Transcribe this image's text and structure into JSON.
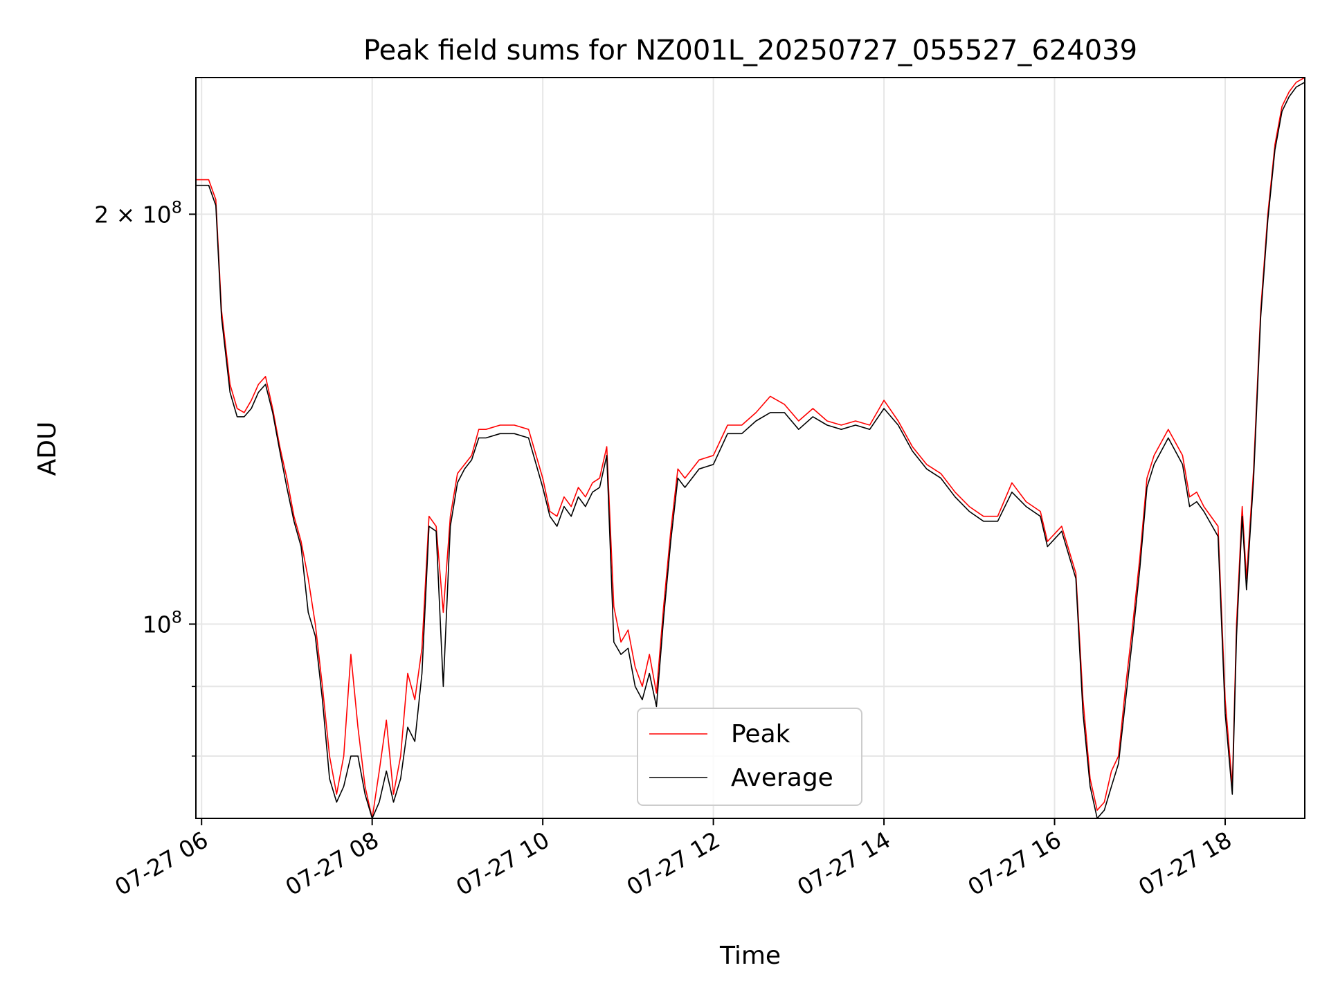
{
  "chart_data": {
    "type": "line",
    "title": "Peak field sums for NZ001L_20250727_055527_624039",
    "xlabel": "Time",
    "ylabel": "ADU",
    "y_scale": "log",
    "xlim": [
      "2025-07-27T05:56",
      "2025-07-27T18:56"
    ],
    "ylim": [
      72000000,
      252000000
    ],
    "x_ticks": [
      {
        "value": "2025-07-27T06:00",
        "label": "07-27 06"
      },
      {
        "value": "2025-07-27T08:00",
        "label": "07-27 08"
      },
      {
        "value": "2025-07-27T10:00",
        "label": "07-27 10"
      },
      {
        "value": "2025-07-27T12:00",
        "label": "07-27 12"
      },
      {
        "value": "2025-07-27T14:00",
        "label": "07-27 14"
      },
      {
        "value": "2025-07-27T16:00",
        "label": "07-27 16"
      },
      {
        "value": "2025-07-27T18:00",
        "label": "07-27 18"
      }
    ],
    "y_major_ticks": [
      {
        "value": 100000000,
        "mantissa": "",
        "base": "10",
        "exp": "8"
      },
      {
        "value": 200000000,
        "mantissa": "2 × ",
        "base": "10",
        "exp": "8"
      }
    ],
    "y_minor_ticks": [
      80000000,
      90000000
    ],
    "grid": true,
    "legend_position": "lower-center",
    "series": [
      {
        "name": "Peak",
        "color": "#ff0000",
        "x": [
          "2025-07-27T05:56",
          "2025-07-27T06:05",
          "2025-07-27T06:10",
          "2025-07-27T06:14",
          "2025-07-27T06:20",
          "2025-07-27T06:25",
          "2025-07-27T06:30",
          "2025-07-27T06:35",
          "2025-07-27T06:40",
          "2025-07-27T06:45",
          "2025-07-27T06:50",
          "2025-07-27T06:55",
          "2025-07-27T07:00",
          "2025-07-27T07:05",
          "2025-07-27T07:10",
          "2025-07-27T07:15",
          "2025-07-27T07:20",
          "2025-07-27T07:25",
          "2025-07-27T07:30",
          "2025-07-27T07:35",
          "2025-07-27T07:40",
          "2025-07-27T07:45",
          "2025-07-27T07:50",
          "2025-07-27T07:55",
          "2025-07-27T08:00",
          "2025-07-27T08:05",
          "2025-07-27T08:10",
          "2025-07-27T08:15",
          "2025-07-27T08:20",
          "2025-07-27T08:25",
          "2025-07-27T08:30",
          "2025-07-27T08:35",
          "2025-07-27T08:40",
          "2025-07-27T08:45",
          "2025-07-27T08:50",
          "2025-07-27T08:55",
          "2025-07-27T09:00",
          "2025-07-27T09:05",
          "2025-07-27T09:10",
          "2025-07-27T09:15",
          "2025-07-27T09:20",
          "2025-07-27T09:30",
          "2025-07-27T09:40",
          "2025-07-27T09:50",
          "2025-07-27T10:00",
          "2025-07-27T10:05",
          "2025-07-27T10:10",
          "2025-07-27T10:15",
          "2025-07-27T10:20",
          "2025-07-27T10:25",
          "2025-07-27T10:30",
          "2025-07-27T10:35",
          "2025-07-27T10:40",
          "2025-07-27T10:45",
          "2025-07-27T10:50",
          "2025-07-27T10:55",
          "2025-07-27T11:00",
          "2025-07-27T11:05",
          "2025-07-27T11:10",
          "2025-07-27T11:15",
          "2025-07-27T11:20",
          "2025-07-27T11:25",
          "2025-07-27T11:30",
          "2025-07-27T11:35",
          "2025-07-27T11:40",
          "2025-07-27T11:50",
          "2025-07-27T12:00",
          "2025-07-27T12:10",
          "2025-07-27T12:20",
          "2025-07-27T12:30",
          "2025-07-27T12:40",
          "2025-07-27T12:50",
          "2025-07-27T13:00",
          "2025-07-27T13:10",
          "2025-07-27T13:20",
          "2025-07-27T13:30",
          "2025-07-27T13:40",
          "2025-07-27T13:50",
          "2025-07-27T14:00",
          "2025-07-27T14:10",
          "2025-07-27T14:20",
          "2025-07-27T14:30",
          "2025-07-27T14:40",
          "2025-07-27T14:50",
          "2025-07-27T15:00",
          "2025-07-27T15:10",
          "2025-07-27T15:20",
          "2025-07-27T15:30",
          "2025-07-27T15:40",
          "2025-07-27T15:50",
          "2025-07-27T15:55",
          "2025-07-27T16:05",
          "2025-07-27T16:15",
          "2025-07-27T16:20",
          "2025-07-27T16:25",
          "2025-07-27T16:30",
          "2025-07-27T16:35",
          "2025-07-27T16:40",
          "2025-07-27T16:45",
          "2025-07-27T16:50",
          "2025-07-27T16:55",
          "2025-07-27T17:00",
          "2025-07-27T17:05",
          "2025-07-27T17:10",
          "2025-07-27T17:20",
          "2025-07-27T17:30",
          "2025-07-27T17:35",
          "2025-07-27T17:40",
          "2025-07-27T17:45",
          "2025-07-27T17:55",
          "2025-07-27T18:00",
          "2025-07-27T18:05",
          "2025-07-27T18:08",
          "2025-07-27T18:12",
          "2025-07-27T18:15",
          "2025-07-27T18:20",
          "2025-07-27T18:25",
          "2025-07-27T18:30",
          "2025-07-27T18:35",
          "2025-07-27T18:40",
          "2025-07-27T18:45",
          "2025-07-27T18:50",
          "2025-07-27T18:56"
        ],
        "y": [
          212000000,
          212000000,
          205000000,
          170000000,
          150000000,
          144000000,
          143000000,
          146000000,
          150000000,
          152000000,
          144000000,
          135000000,
          128000000,
          120000000,
          115000000,
          108000000,
          100000000,
          90000000,
          80000000,
          75000000,
          80000000,
          95000000,
          84000000,
          76000000,
          72000000,
          78000000,
          85000000,
          75000000,
          80000000,
          92000000,
          88000000,
          96000000,
          120000000,
          118000000,
          102000000,
          120000000,
          129000000,
          131000000,
          133000000,
          139000000,
          139000000,
          140000000,
          140000000,
          139000000,
          128000000,
          121000000,
          120000000,
          124000000,
          122000000,
          126000000,
          124000000,
          127000000,
          128000000,
          135000000,
          103000000,
          97000000,
          99000000,
          93000000,
          90000000,
          95000000,
          89000000,
          103000000,
          117000000,
          130000000,
          128000000,
          132000000,
          133000000,
          140000000,
          140000000,
          143000000,
          147000000,
          145000000,
          141000000,
          144000000,
          141000000,
          140000000,
          141000000,
          140000000,
          146000000,
          141000000,
          135000000,
          131000000,
          129000000,
          125000000,
          122000000,
          120000000,
          120000000,
          127000000,
          123000000,
          121000000,
          115000000,
          118000000,
          109000000,
          88000000,
          77000000,
          73000000,
          74000000,
          78000000,
          80000000,
          90000000,
          100000000,
          112000000,
          128000000,
          133000000,
          139000000,
          133000000,
          124000000,
          125000000,
          122000000,
          118000000,
          88000000,
          76000000,
          100000000,
          122000000,
          108000000,
          130000000,
          170000000,
          200000000,
          225000000,
          240000000,
          246000000,
          250000000,
          252000000
        ]
      },
      {
        "name": "Average",
        "color": "#000000",
        "x": [
          "2025-07-27T05:56",
          "2025-07-27T06:05",
          "2025-07-27T06:10",
          "2025-07-27T06:14",
          "2025-07-27T06:20",
          "2025-07-27T06:25",
          "2025-07-27T06:30",
          "2025-07-27T06:35",
          "2025-07-27T06:40",
          "2025-07-27T06:45",
          "2025-07-27T06:50",
          "2025-07-27T06:55",
          "2025-07-27T07:00",
          "2025-07-27T07:05",
          "2025-07-27T07:10",
          "2025-07-27T07:15",
          "2025-07-27T07:20",
          "2025-07-27T07:25",
          "2025-07-27T07:30",
          "2025-07-27T07:35",
          "2025-07-27T07:40",
          "2025-07-27T07:45",
          "2025-07-27T07:50",
          "2025-07-27T07:55",
          "2025-07-27T08:00",
          "2025-07-27T08:05",
          "2025-07-27T08:10",
          "2025-07-27T08:15",
          "2025-07-27T08:20",
          "2025-07-27T08:25",
          "2025-07-27T08:30",
          "2025-07-27T08:35",
          "2025-07-27T08:40",
          "2025-07-27T08:45",
          "2025-07-27T08:50",
          "2025-07-27T08:55",
          "2025-07-27T09:00",
          "2025-07-27T09:05",
          "2025-07-27T09:10",
          "2025-07-27T09:15",
          "2025-07-27T09:20",
          "2025-07-27T09:30",
          "2025-07-27T09:40",
          "2025-07-27T09:50",
          "2025-07-27T10:00",
          "2025-07-27T10:05",
          "2025-07-27T10:10",
          "2025-07-27T10:15",
          "2025-07-27T10:20",
          "2025-07-27T10:25",
          "2025-07-27T10:30",
          "2025-07-27T10:35",
          "2025-07-27T10:40",
          "2025-07-27T10:45",
          "2025-07-27T10:50",
          "2025-07-27T10:55",
          "2025-07-27T11:00",
          "2025-07-27T11:05",
          "2025-07-27T11:10",
          "2025-07-27T11:15",
          "2025-07-27T11:20",
          "2025-07-27T11:25",
          "2025-07-27T11:30",
          "2025-07-27T11:35",
          "2025-07-27T11:40",
          "2025-07-27T11:50",
          "2025-07-27T12:00",
          "2025-07-27T12:10",
          "2025-07-27T12:20",
          "2025-07-27T12:30",
          "2025-07-27T12:40",
          "2025-07-27T12:50",
          "2025-07-27T13:00",
          "2025-07-27T13:10",
          "2025-07-27T13:20",
          "2025-07-27T13:30",
          "2025-07-27T13:40",
          "2025-07-27T13:50",
          "2025-07-27T14:00",
          "2025-07-27T14:10",
          "2025-07-27T14:20",
          "2025-07-27T14:30",
          "2025-07-27T14:40",
          "2025-07-27T14:50",
          "2025-07-27T15:00",
          "2025-07-27T15:10",
          "2025-07-27T15:20",
          "2025-07-27T15:30",
          "2025-07-27T15:40",
          "2025-07-27T15:50",
          "2025-07-27T15:55",
          "2025-07-27T16:05",
          "2025-07-27T16:15",
          "2025-07-27T16:20",
          "2025-07-27T16:25",
          "2025-07-27T16:30",
          "2025-07-27T16:35",
          "2025-07-27T16:40",
          "2025-07-27T16:45",
          "2025-07-27T16:50",
          "2025-07-27T16:55",
          "2025-07-27T17:00",
          "2025-07-27T17:05",
          "2025-07-27T17:10",
          "2025-07-27T17:20",
          "2025-07-27T17:30",
          "2025-07-27T17:35",
          "2025-07-27T17:40",
          "2025-07-27T17:45",
          "2025-07-27T17:55",
          "2025-07-27T18:00",
          "2025-07-27T18:05",
          "2025-07-27T18:08",
          "2025-07-27T18:12",
          "2025-07-27T18:15",
          "2025-07-27T18:20",
          "2025-07-27T18:25",
          "2025-07-27T18:30",
          "2025-07-27T18:35",
          "2025-07-27T18:40",
          "2025-07-27T18:45",
          "2025-07-27T18:50",
          "2025-07-27T18:56"
        ],
        "y": [
          210000000,
          210000000,
          203000000,
          168000000,
          148000000,
          142000000,
          142000000,
          144000000,
          148000000,
          150000000,
          143000000,
          134000000,
          126000000,
          119000000,
          114000000,
          102000000,
          98000000,
          88000000,
          77000000,
          74000000,
          76000000,
          80000000,
          80000000,
          75000000,
          72000000,
          74000000,
          78000000,
          74000000,
          77000000,
          84000000,
          82000000,
          92000000,
          118000000,
          117000000,
          90000000,
          118000000,
          127000000,
          130000000,
          132000000,
          137000000,
          137000000,
          138000000,
          138000000,
          137000000,
          126000000,
          120000000,
          118000000,
          122000000,
          120000000,
          124000000,
          122000000,
          125000000,
          126000000,
          133000000,
          97000000,
          95000000,
          96000000,
          90000000,
          88000000,
          92000000,
          87000000,
          101000000,
          115000000,
          128000000,
          126000000,
          130000000,
          131000000,
          138000000,
          138000000,
          141000000,
          143000000,
          143000000,
          139000000,
          142000000,
          140000000,
          139000000,
          140000000,
          139000000,
          144000000,
          140000000,
          134000000,
          130000000,
          128000000,
          124000000,
          121000000,
          119000000,
          119000000,
          125000000,
          122000000,
          120000000,
          114000000,
          117000000,
          108000000,
          86000000,
          76000000,
          72000000,
          73000000,
          76000000,
          79000000,
          88000000,
          98000000,
          110000000,
          126000000,
          131000000,
          137000000,
          131000000,
          122000000,
          123000000,
          121000000,
          116000000,
          86000000,
          75000000,
          98000000,
          120000000,
          106000000,
          128000000,
          168000000,
          198000000,
          223000000,
          238000000,
          244000000,
          248000000,
          250000000
        ]
      }
    ]
  }
}
